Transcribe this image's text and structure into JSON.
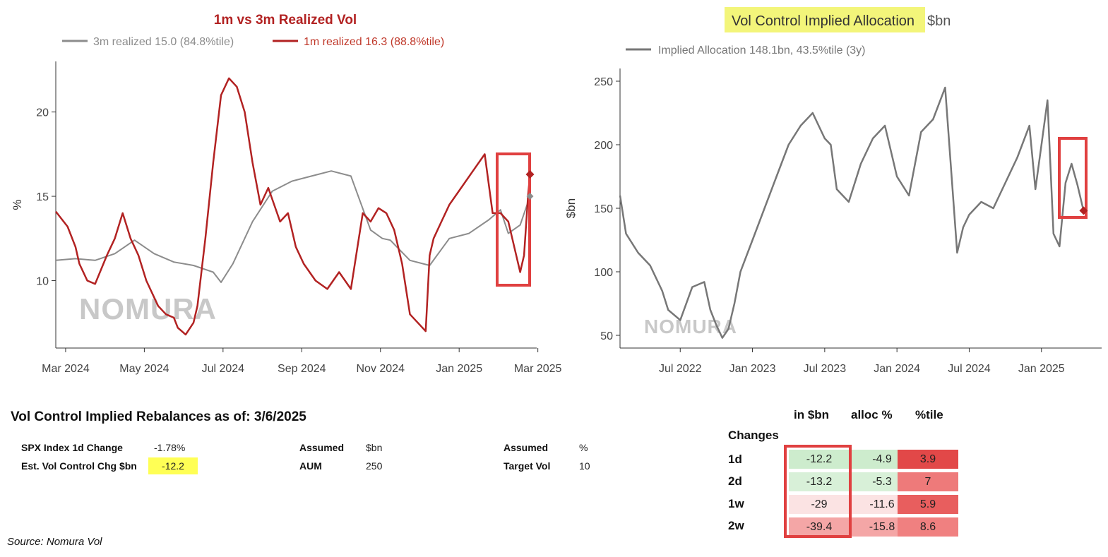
{
  "chart_data": [
    {
      "type": "line",
      "title": "1m vs 3m Realized Vol",
      "ylabel": "%",
      "ylim": [
        6,
        23
      ],
      "yticks": [
        10,
        15,
        20
      ],
      "xticks": [
        "Mar 2024",
        "May 2024",
        "Jul 2024",
        "Sep 2024",
        "Nov 2024",
        "Jan 2025",
        "Mar 2025"
      ],
      "x_range_months": [
        0,
        12.4
      ],
      "watermark": "NOMURA",
      "series": [
        {
          "name": "3m realized 15.0 (84.8%tile)",
          "color": "#8c8c8c",
          "x": [
            0,
            0.5,
            1.0,
            1.5,
            2.0,
            2.5,
            3.0,
            3.5,
            4.0,
            4.2,
            4.5,
            5.0,
            5.5,
            6.0,
            6.5,
            7.0,
            7.5,
            8.0,
            8.3,
            8.5,
            9.0,
            9.5,
            10.0,
            10.5,
            11.0,
            11.3,
            11.5,
            11.8,
            12.05
          ],
          "values": [
            11.2,
            11.3,
            11.2,
            11.6,
            12.4,
            11.6,
            11.1,
            10.9,
            10.5,
            9.9,
            11.0,
            13.5,
            15.3,
            15.9,
            16.2,
            16.5,
            16.2,
            13.0,
            12.5,
            12.4,
            11.2,
            10.9,
            12.5,
            12.8,
            13.6,
            14.2,
            12.8,
            13.3,
            15.0
          ]
        },
        {
          "name": "1m realized 16.3 (88.8%tile)",
          "color": "#b22222",
          "x": [
            0,
            0.3,
            0.5,
            0.6,
            0.8,
            1.0,
            1.3,
            1.5,
            1.7,
            1.9,
            2.1,
            2.3,
            2.6,
            2.8,
            3.0,
            3.1,
            3.3,
            3.5,
            3.6,
            3.8,
            4.0,
            4.2,
            4.4,
            4.6,
            4.8,
            5.0,
            5.2,
            5.4,
            5.7,
            5.9,
            6.1,
            6.3,
            6.6,
            6.9,
            7.2,
            7.5,
            7.8,
            8.0,
            8.2,
            8.4,
            8.6,
            8.8,
            9.0,
            9.2,
            9.4,
            9.5,
            9.6,
            9.8,
            10.0,
            10.3,
            10.6,
            10.9,
            11.1,
            11.3,
            11.5,
            11.7,
            11.8,
            11.9,
            12.0,
            12.05
          ],
          "values": [
            14.1,
            13.2,
            12.0,
            11.0,
            10.0,
            9.8,
            11.5,
            12.5,
            14.0,
            12.5,
            11.5,
            10.0,
            8.5,
            8.0,
            7.8,
            7.2,
            6.8,
            7.5,
            8.5,
            12.5,
            17.0,
            21.0,
            22.0,
            21.5,
            20.0,
            17.0,
            14.5,
            15.5,
            13.5,
            14.0,
            12.0,
            11.0,
            10.0,
            9.5,
            10.5,
            9.5,
            14.0,
            13.5,
            14.3,
            14.0,
            13.0,
            11.0,
            8.0,
            7.5,
            7.0,
            11.5,
            12.5,
            13.5,
            14.5,
            15.5,
            16.5,
            17.5,
            14.0,
            14.0,
            13.5,
            11.5,
            10.5,
            11.5,
            15.0,
            16.3
          ]
        }
      ],
      "end_markers": {
        "1m": 16.3,
        "3m": 15.0
      }
    },
    {
      "type": "line",
      "title": "Vol Control Implied Allocation",
      "title_unit": "$bn",
      "ylabel": "$bn",
      "ylim": [
        40,
        260
      ],
      "yticks": [
        50,
        100,
        150,
        200,
        250
      ],
      "xticks": [
        "Jul 2022",
        "Jan 2023",
        "Jul 2023",
        "Jan 2024",
        "Jul 2024",
        "Jan 2025"
      ],
      "x_range_months": [
        0,
        40
      ],
      "watermark": "NOMURA",
      "series": [
        {
          "name": "Implied Allocation 148.1bn, 43.5%tile (3y)",
          "color": "#777777",
          "x": [
            0,
            0.5,
            1.5,
            2.5,
            3.5,
            4.0,
            5.0,
            6.0,
            7.0,
            7.5,
            8.0,
            8.5,
            9.0,
            9.5,
            10.0,
            11.0,
            12.0,
            13.0,
            14.0,
            15.0,
            16.0,
            17.0,
            17.5,
            18.0,
            19.0,
            20.0,
            21.0,
            22.0,
            22.5,
            23.0,
            24.0,
            25.0,
            26.0,
            27.0,
            28.0,
            28.5,
            29.0,
            30.0,
            31.0,
            32.0,
            33.0,
            34.0,
            34.5,
            35.0,
            35.5,
            36.0,
            36.5,
            37.0,
            37.5,
            38.0,
            38.5
          ],
          "values": [
            160,
            130,
            115,
            105,
            85,
            70,
            62,
            88,
            92,
            70,
            58,
            48,
            55,
            75,
            100,
            125,
            150,
            175,
            200,
            215,
            225,
            205,
            200,
            165,
            155,
            185,
            205,
            215,
            195,
            175,
            160,
            210,
            220,
            245,
            115,
            135,
            145,
            155,
            150,
            170,
            190,
            215,
            165,
            200,
            235,
            130,
            120,
            170,
            185,
            168,
            148
          ]
        }
      ],
      "end_marker": 148.1
    }
  ],
  "chart1": {
    "title": "1m vs 3m Realized Vol",
    "legend_3m": "3m realized 15.0 (84.8%tile)",
    "legend_1m": "1m realized 16.3 (88.8%tile)",
    "ylabel": "%",
    "watermark": "NOMURA"
  },
  "chart2": {
    "title": "Vol Control Implied Allocation",
    "title_unit": "$bn",
    "legend": "Implied Allocation 148.1bn, 43.5%tile (3y)",
    "ylabel": "$bn",
    "watermark": "NOMURA"
  },
  "rebalance": {
    "title": "Vol Control Implied Rebalances as of: 3/6/2025",
    "spx_label": "SPX Index 1d Change",
    "spx_value": "-1.78%",
    "est_label": "Est. Vol Control Chg $bn",
    "est_value": "-12.2",
    "assumed1": "Assumed",
    "unit1": "$bn",
    "aum_label": "AUM",
    "aum_value": "250",
    "assumed2": "Assumed",
    "unit2": "%",
    "tv_label": "Target Vol",
    "tv_value": "10"
  },
  "changes": {
    "title": "Changes",
    "col_bn": "in $bn",
    "col_alloc": "alloc %",
    "col_pct": "%tile",
    "rows": [
      {
        "label": "1d",
        "bn": "-12.2",
        "alloc": "-4.9",
        "pct": "3.9"
      },
      {
        "label": "2d",
        "bn": "-13.2",
        "alloc": "-5.3",
        "pct": "7"
      },
      {
        "label": "1w",
        "bn": "-29",
        "alloc": "-11.6",
        "pct": "5.9"
      },
      {
        "label": "2w",
        "bn": "-39.4",
        "alloc": "-15.8",
        "pct": "8.6"
      }
    ]
  },
  "source": "Source: Nomura Vol"
}
